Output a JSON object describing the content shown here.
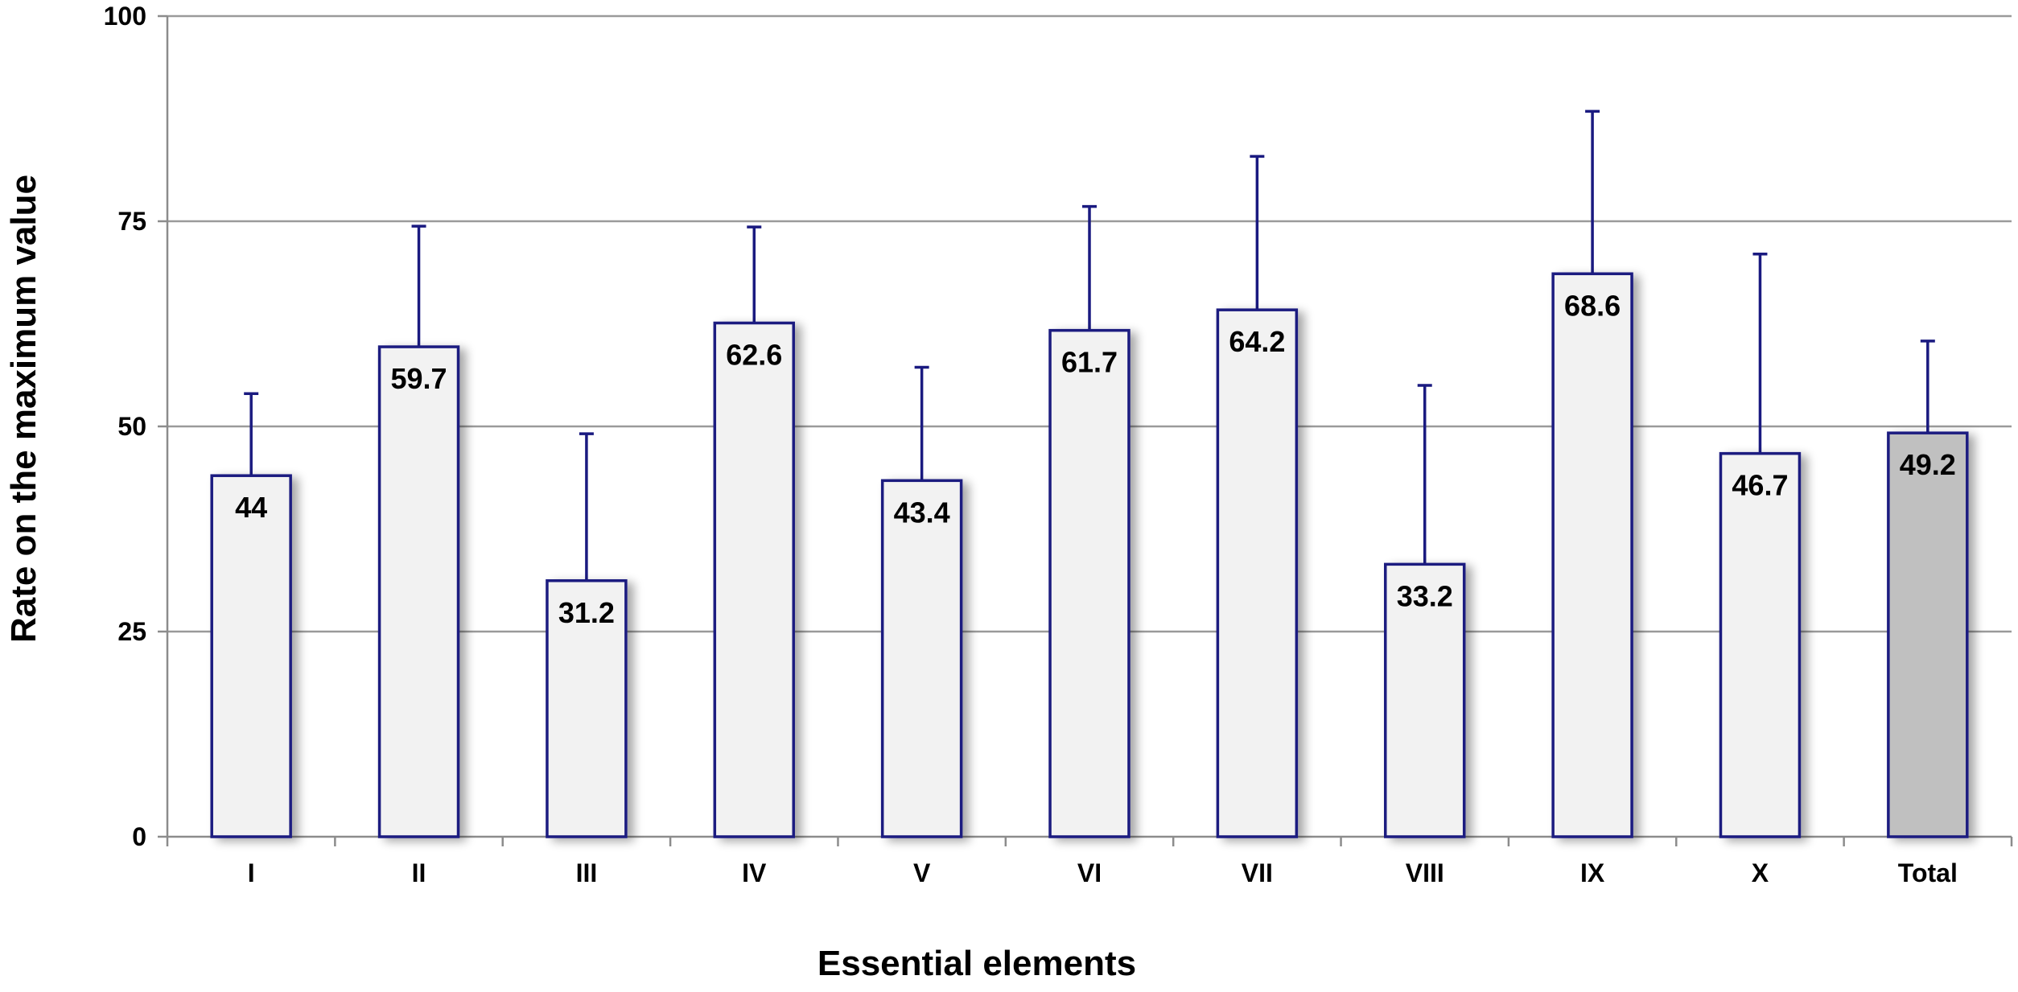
{
  "chart_data": {
    "type": "bar",
    "title": "",
    "xlabel": "Essential elements",
    "ylabel": "Rate on the maximum value",
    "ylim": [
      0,
      100
    ],
    "yticks": [
      0,
      25,
      50,
      75,
      100
    ],
    "grid": true,
    "categories": [
      "I",
      "II",
      "III",
      "IV",
      "V",
      "VI",
      "VII",
      "VIII",
      "IX",
      "X",
      "Total"
    ],
    "values": [
      44,
      59.7,
      31.2,
      62.6,
      43.4,
      61.7,
      64.2,
      33.2,
      68.6,
      46.7,
      49.2
    ],
    "value_labels": [
      "44",
      "59.7",
      "31.2",
      "62.6",
      "43.4",
      "61.7",
      "64.2",
      "33.2",
      "68.6",
      "46.7",
      "49.2"
    ],
    "error_upper": [
      54,
      74.4,
      49.1,
      74.3,
      57.2,
      76.8,
      82.9,
      55.0,
      88.4,
      71.0,
      60.4
    ],
    "colors": {
      "bar_fill": "#f2f2f2",
      "total_fill": "#c0c0c0",
      "bar_stroke": "#1a1a80",
      "error_bar": "#1a1a80",
      "grid": "#9a9a9a",
      "axis": "#8c8c8c"
    }
  }
}
